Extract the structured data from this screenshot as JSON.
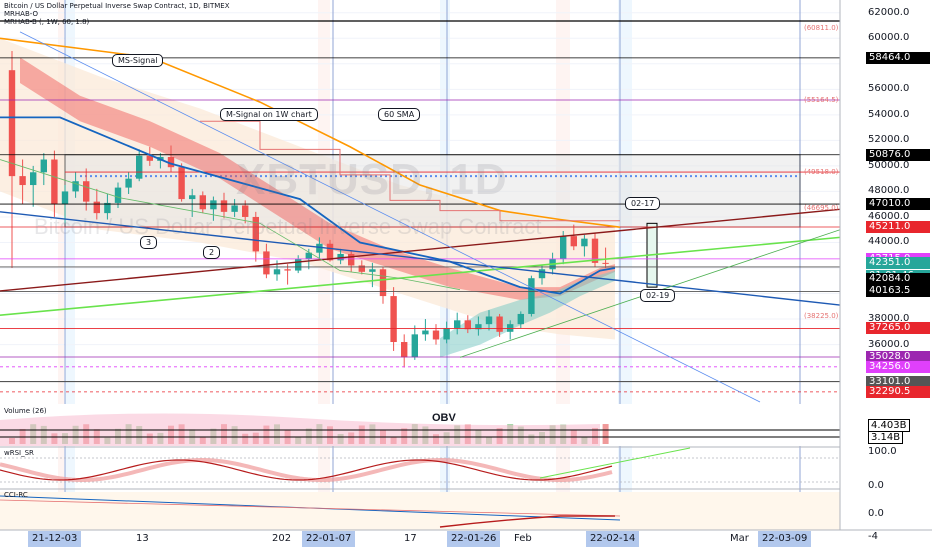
{
  "legend": {
    "line1": "Bitcoin / US Dollar Perpetual Inverse Swap Contract, 1D, BITMEX",
    "line2": "MRHAB-O",
    "line3": "MRHAB-B (, 1W, 60, 1.8)"
  },
  "watermark": {
    "symbol": "XBTUSD, 1D",
    "name": "Bitcoin / US Dollar Perpetual Inverse Swap Contract"
  },
  "annotations": {
    "ms_signal": "MS-Signal",
    "m_signal": "M-Signal on 1W chart",
    "sma60": "60 SMA",
    "n3": "3",
    "n2": "2",
    "d0217": "02-17",
    "d0219": "02-19",
    "obv": "OBV"
  },
  "panels": {
    "volume": "Volume (26)",
    "wrsi": "wRSI_SR",
    "cci": "CCI-RC"
  },
  "price_axis_ticks": [
    "62000.0",
    "60000.0",
    "56000.0",
    "54000.0",
    "52000.0",
    "50000.0",
    "48000.0",
    "46000.0",
    "44000.0",
    "38000.0",
    "36000.0"
  ],
  "price_labels": [
    {
      "text": "58464.0",
      "color": "#000000"
    },
    {
      "text": "50876.0",
      "color": "#000000"
    },
    {
      "text": "47010.0",
      "color": "#000000"
    },
    {
      "text": "45211.0",
      "color": "#e8262d"
    },
    {
      "text": "42715.0",
      "color": "#e040fb"
    },
    {
      "text": "42351.0",
      "color": "#26a69a"
    },
    {
      "text": "01:01:46",
      "color": "#26a69a"
    },
    {
      "text": "42084.0",
      "color": "#000000"
    },
    {
      "text": "40163.5",
      "color": "#000000"
    },
    {
      "text": "37265.0",
      "color": "#e8262d"
    },
    {
      "text": "35028.0",
      "color": "#9c27b0"
    },
    {
      "text": "34256.0",
      "color": "#e040fb"
    },
    {
      "text": "33101.0",
      "color": "#555555"
    },
    {
      "text": "32290.5",
      "color": "#e8262d"
    }
  ],
  "level_notes": [
    "(60811.0)",
    "(55164.5)",
    "(49518.0)",
    "(46695.0)",
    "(38225.0)"
  ],
  "indicator_labels": [
    {
      "text": "4.403B",
      "color": "#000000"
    },
    {
      "text": "3.14B",
      "color": "#000000"
    },
    {
      "text": "100.0",
      "color": "#131722"
    },
    {
      "text": "0.0",
      "color": "#131722"
    },
    {
      "text": "0.0",
      "color": "#131722"
    },
    {
      "text": "-4",
      "color": "#131722"
    }
  ],
  "time_axis": {
    "plain": [
      "13",
      "202",
      "17",
      "Feb",
      "Mar"
    ],
    "boxed": [
      "21-12-03",
      "22-01-07",
      "22-01-26",
      "22-02-14",
      "22-03-09"
    ]
  },
  "colors": {
    "up": "#26a69a",
    "down": "#ef5350",
    "ms_signal": "#ef5350",
    "sma60": "#ff9800",
    "m_signal": "#b71c1c",
    "trend_green": "#4caf50",
    "trend_blue": "#1565c0"
  },
  "chart_data": {
    "type": "candlestick",
    "symbol": "XBTUSD",
    "timeframe": "1D",
    "ylim": [
      31500,
      63000
    ],
    "candles": [
      {
        "o": 57500,
        "h": 59000,
        "l": 42000,
        "c": 49200
      },
      {
        "o": 49200,
        "h": 50500,
        "l": 47000,
        "c": 48500
      },
      {
        "o": 48500,
        "h": 50000,
        "l": 46800,
        "c": 49500
      },
      {
        "o": 49500,
        "h": 51000,
        "l": 48500,
        "c": 50500
      },
      {
        "o": 50500,
        "h": 51200,
        "l": 46000,
        "c": 47000
      },
      {
        "o": 47000,
        "h": 48500,
        "l": 45500,
        "c": 48000
      },
      {
        "o": 48000,
        "h": 49500,
        "l": 47500,
        "c": 48800
      },
      {
        "o": 48800,
        "h": 49800,
        "l": 46500,
        "c": 47200
      },
      {
        "o": 47200,
        "h": 48200,
        "l": 45800,
        "c": 46300
      },
      {
        "o": 46300,
        "h": 47800,
        "l": 45800,
        "c": 47100
      },
      {
        "o": 47100,
        "h": 48700,
        "l": 46700,
        "c": 48300
      },
      {
        "o": 48300,
        "h": 49500,
        "l": 47800,
        "c": 49000
      },
      {
        "o": 49000,
        "h": 51300,
        "l": 48800,
        "c": 50800
      },
      {
        "o": 50800,
        "h": 51500,
        "l": 50000,
        "c": 50400
      },
      {
        "o": 50400,
        "h": 51000,
        "l": 49800,
        "c": 50700
      },
      {
        "o": 50700,
        "h": 51600,
        "l": 49500,
        "c": 49900
      },
      {
        "o": 49900,
        "h": 50200,
        "l": 47200,
        "c": 47400
      },
      {
        "o": 47400,
        "h": 48200,
        "l": 46000,
        "c": 47700
      },
      {
        "o": 47700,
        "h": 48000,
        "l": 46300,
        "c": 46600
      },
      {
        "o": 46600,
        "h": 47600,
        "l": 45700,
        "c": 47300
      },
      {
        "o": 47300,
        "h": 47900,
        "l": 45900,
        "c": 46400
      },
      {
        "o": 46400,
        "h": 47400,
        "l": 46000,
        "c": 46900
      },
      {
        "o": 46900,
        "h": 47300,
        "l": 45500,
        "c": 46000
      },
      {
        "o": 46000,
        "h": 46400,
        "l": 42500,
        "c": 43300
      },
      {
        "o": 43300,
        "h": 43900,
        "l": 41200,
        "c": 41500
      },
      {
        "o": 41500,
        "h": 42600,
        "l": 41000,
        "c": 41900
      },
      {
        "o": 41900,
        "h": 42300,
        "l": 40700,
        "c": 41800
      },
      {
        "o": 41800,
        "h": 43000,
        "l": 41600,
        "c": 42700
      },
      {
        "o": 42700,
        "h": 43500,
        "l": 41900,
        "c": 43200
      },
      {
        "o": 43200,
        "h": 44400,
        "l": 42700,
        "c": 43900
      },
      {
        "o": 43900,
        "h": 44200,
        "l": 42500,
        "c": 42600
      },
      {
        "o": 42600,
        "h": 43500,
        "l": 42300,
        "c": 43100
      },
      {
        "o": 43100,
        "h": 43400,
        "l": 41700,
        "c": 42200
      },
      {
        "o": 42200,
        "h": 42600,
        "l": 41500,
        "c": 41700
      },
      {
        "o": 41700,
        "h": 42400,
        "l": 40500,
        "c": 41900
      },
      {
        "o": 41900,
        "h": 42100,
        "l": 39200,
        "c": 39800
      },
      {
        "o": 39800,
        "h": 40500,
        "l": 35500,
        "c": 36200
      },
      {
        "o": 36200,
        "h": 36800,
        "l": 34200,
        "c": 35000
      },
      {
        "o": 35000,
        "h": 37500,
        "l": 34800,
        "c": 36800
      },
      {
        "o": 36800,
        "h": 38000,
        "l": 36300,
        "c": 37100
      },
      {
        "o": 37100,
        "h": 37600,
        "l": 36000,
        "c": 36400
      },
      {
        "o": 36400,
        "h": 37800,
        "l": 36100,
        "c": 37300
      },
      {
        "o": 37300,
        "h": 38500,
        "l": 36800,
        "c": 37900
      },
      {
        "o": 37900,
        "h": 38300,
        "l": 36900,
        "c": 37200
      },
      {
        "o": 37200,
        "h": 38200,
        "l": 36700,
        "c": 37600
      },
      {
        "o": 37600,
        "h": 38700,
        "l": 37100,
        "c": 38200
      },
      {
        "o": 38200,
        "h": 38400,
        "l": 36600,
        "c": 37000
      },
      {
        "o": 37000,
        "h": 37900,
        "l": 36400,
        "c": 37600
      },
      {
        "o": 37600,
        "h": 38600,
        "l": 37300,
        "c": 38400
      },
      {
        "o": 38400,
        "h": 41400,
        "l": 38200,
        "c": 41200
      },
      {
        "o": 41200,
        "h": 42200,
        "l": 40700,
        "c": 41900
      },
      {
        "o": 41900,
        "h": 43200,
        "l": 41500,
        "c": 42700
      },
      {
        "o": 42700,
        "h": 44900,
        "l": 42300,
        "c": 44500
      },
      {
        "o": 44500,
        "h": 45400,
        "l": 43400,
        "c": 43700
      },
      {
        "o": 43700,
        "h": 44600,
        "l": 42900,
        "c": 44300
      },
      {
        "o": 44300,
        "h": 44700,
        "l": 42100,
        "c": 42400
      },
      {
        "o": 42400,
        "h": 43600,
        "l": 42000,
        "c": 42350
      }
    ],
    "levels": [
      58464.0,
      50876.0,
      47010.0,
      45211.0,
      42715.0,
      42084.0,
      40163.5,
      37265.0,
      35028.0,
      34256.0,
      33101.0,
      32290.5
    ]
  }
}
